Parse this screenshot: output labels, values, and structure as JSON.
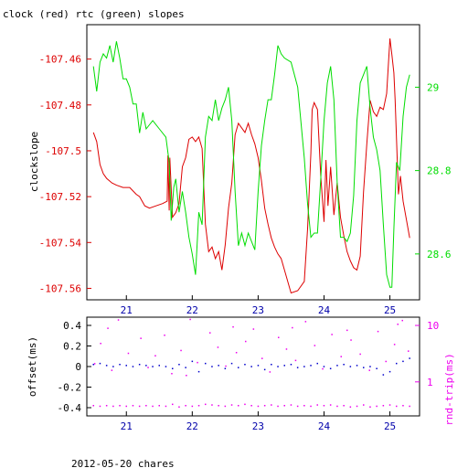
{
  "title": "clock (red) rtc (green) slopes",
  "footer": "2012-05-20 chares",
  "colors": {
    "clock": "#dd0000",
    "rtc": "#00dd00",
    "offset": "#0000cc",
    "rtt": "#ee00ee",
    "axes": "#000000"
  },
  "chart_data": [
    {
      "type": "line",
      "ylabel": "clockslope",
      "xlim": [
        20.4,
        25.45
      ],
      "ylim": [
        -107.565,
        -107.445
      ],
      "ylim_right": [
        28.49,
        29.15
      ],
      "x_ticks": [
        21,
        22,
        23,
        24,
        25
      ],
      "x_tick_labels": [
        "21",
        "22",
        "23",
        "24",
        "25"
      ],
      "y_ticks": [
        -107.46,
        -107.48,
        -107.5,
        -107.52,
        -107.54,
        -107.56
      ],
      "y_tick_labels": [
        "-107.46",
        "-107.48",
        "-107.5",
        "-107.52",
        "-107.54",
        "-107.56"
      ],
      "y_right_ticks": [
        29,
        28.8,
        28.6
      ],
      "y_right_tick_labels": [
        "29",
        "28.8",
        "28.6"
      ],
      "series": [
        {
          "color_key": "clock",
          "axis": "left",
          "x": [
            20.5,
            20.55,
            20.6,
            20.65,
            20.7,
            20.78,
            20.85,
            20.95,
            21.05,
            21.15,
            21.2,
            21.28,
            21.35,
            21.45,
            21.55,
            21.62,
            21.63,
            21.65,
            21.66,
            21.7,
            21.75,
            21.8,
            21.85,
            21.9,
            21.95,
            22.0,
            22.05,
            22.1,
            22.15,
            22.2,
            22.25,
            22.3,
            22.35,
            22.4,
            22.45,
            22.5,
            22.55,
            22.6,
            22.65,
            22.7,
            22.75,
            22.8,
            22.85,
            22.9,
            22.95,
            23.0,
            23.05,
            23.1,
            23.15,
            23.2,
            23.25,
            23.3,
            23.35,
            23.4,
            23.5,
            23.6,
            23.7,
            23.75,
            23.8,
            23.82,
            23.85,
            23.9,
            23.95,
            24.0,
            24.03,
            24.06,
            24.1,
            24.15,
            24.2,
            24.25,
            24.3,
            24.35,
            24.4,
            24.45,
            24.5,
            24.55,
            24.6,
            24.65,
            24.7,
            24.75,
            24.8,
            24.85,
            24.9,
            24.95,
            25.0,
            25.03,
            25.06,
            25.08,
            25.1,
            25.13,
            25.16,
            25.2,
            25.25,
            25.3
          ],
          "y": [
            -107.492,
            -107.496,
            -107.506,
            -107.51,
            -107.512,
            -107.514,
            -107.515,
            -107.516,
            -107.516,
            -107.519,
            -107.52,
            -107.524,
            -107.525,
            -107.524,
            -107.523,
            -107.522,
            -107.502,
            -107.526,
            -107.503,
            -107.529,
            -107.527,
            -107.523,
            -107.507,
            -107.503,
            -107.495,
            -107.494,
            -107.496,
            -107.494,
            -107.499,
            -107.532,
            -107.544,
            -107.542,
            -107.547,
            -107.544,
            -107.552,
            -107.541,
            -107.525,
            -107.514,
            -107.493,
            -107.488,
            -107.49,
            -107.492,
            -107.488,
            -107.493,
            -107.497,
            -107.503,
            -107.513,
            -107.525,
            -107.532,
            -107.538,
            -107.542,
            -107.545,
            -107.547,
            -107.552,
            -107.562,
            -107.561,
            -107.557,
            -107.534,
            -107.501,
            -107.482,
            -107.479,
            -107.482,
            -107.511,
            -107.531,
            -107.504,
            -107.524,
            -107.507,
            -107.528,
            -107.514,
            -107.529,
            -107.537,
            -107.544,
            -107.548,
            -107.551,
            -107.552,
            -107.546,
            -107.518,
            -107.497,
            -107.478,
            -107.483,
            -107.485,
            -107.481,
            -107.482,
            -107.475,
            -107.451,
            -107.458,
            -107.466,
            -107.478,
            -107.495,
            -107.519,
            -107.511,
            -107.522,
            -107.53,
            -107.538
          ]
        },
        {
          "color_key": "rtc",
          "axis": "right",
          "x": [
            20.5,
            20.55,
            20.6,
            20.65,
            20.7,
            20.75,
            20.8,
            20.85,
            20.9,
            20.95,
            21.0,
            21.05,
            21.1,
            21.15,
            21.2,
            21.25,
            21.3,
            21.35,
            21.4,
            21.5,
            21.6,
            21.65,
            21.68,
            21.72,
            21.75,
            21.8,
            21.85,
            21.9,
            21.95,
            22.0,
            22.05,
            22.1,
            22.15,
            22.2,
            22.25,
            22.3,
            22.35,
            22.4,
            22.45,
            22.5,
            22.55,
            22.6,
            22.65,
            22.7,
            22.75,
            22.8,
            22.85,
            22.9,
            22.95,
            23.0,
            23.05,
            23.1,
            23.15,
            23.2,
            23.25,
            23.3,
            23.35,
            23.4,
            23.5,
            23.6,
            23.7,
            23.75,
            23.8,
            23.85,
            23.9,
            23.95,
            24.0,
            24.05,
            24.1,
            24.15,
            24.2,
            24.25,
            24.3,
            24.35,
            24.4,
            24.45,
            24.5,
            24.55,
            24.6,
            24.65,
            24.7,
            24.75,
            24.8,
            24.85,
            24.9,
            24.95,
            25.0,
            25.03,
            25.06,
            25.1,
            25.15,
            25.2,
            25.25,
            25.3
          ],
          "y": [
            29.05,
            28.99,
            29.06,
            29.08,
            29.07,
            29.1,
            29.06,
            29.11,
            29.07,
            29.02,
            29.02,
            29.0,
            28.96,
            28.96,
            28.89,
            28.94,
            28.9,
            28.91,
            28.92,
            28.9,
            28.88,
            28.82,
            28.68,
            28.76,
            28.78,
            28.7,
            28.75,
            28.7,
            28.64,
            28.6,
            28.55,
            28.7,
            28.67,
            28.88,
            28.93,
            28.92,
            28.97,
            28.92,
            28.95,
            28.97,
            29.0,
            28.92,
            28.75,
            28.62,
            28.65,
            28.62,
            28.65,
            28.63,
            28.61,
            28.75,
            28.86,
            28.92,
            28.97,
            28.97,
            29.03,
            29.1,
            29.08,
            29.07,
            29.06,
            29.0,
            28.83,
            28.72,
            28.64,
            28.65,
            28.65,
            28.78,
            28.92,
            29.01,
            29.05,
            28.97,
            28.77,
            28.64,
            28.64,
            28.63,
            28.65,
            28.74,
            28.92,
            29.01,
            29.03,
            29.05,
            28.95,
            28.88,
            28.85,
            28.8,
            28.67,
            28.55,
            28.52,
            28.52,
            28.66,
            28.82,
            28.8,
            28.93,
            29.0,
            29.03
          ]
        }
      ]
    },
    {
      "type": "scatter",
      "ylabel": "offset(ms)",
      "ylabel_right": "rnd-trip(ms)",
      "xlim": [
        20.4,
        25.45
      ],
      "ylim": [
        -0.48,
        0.48
      ],
      "ylim_right_log": [
        0.25,
        14
      ],
      "x_ticks": [
        21,
        22,
        23,
        24,
        25
      ],
      "x_tick_labels": [
        "21",
        "22",
        "23",
        "24",
        "25"
      ],
      "y_ticks": [
        0.4,
        0.2,
        0,
        -0.2,
        -0.4
      ],
      "y_tick_labels": [
        "0.4",
        "0.2",
        "0",
        "-0.2",
        "-0.4"
      ],
      "y_right_ticks": [
        10,
        1
      ],
      "y_right_tick_labels": [
        "10",
        "1"
      ],
      "series": [
        {
          "color_key": "offset",
          "axis": "left",
          "x": [
            20.5,
            20.6,
            20.7,
            20.8,
            20.9,
            21.0,
            21.1,
            21.2,
            21.3,
            21.4,
            21.5,
            21.6,
            21.7,
            21.8,
            21.9,
            22.0,
            22.1,
            22.2,
            22.3,
            22.4,
            22.5,
            22.6,
            22.7,
            22.8,
            22.9,
            23.0,
            23.1,
            23.2,
            23.3,
            23.4,
            23.5,
            23.6,
            23.7,
            23.8,
            23.9,
            24.0,
            24.1,
            24.2,
            24.3,
            24.4,
            24.5,
            24.6,
            24.7,
            24.8,
            24.9,
            25.0,
            25.1,
            25.2,
            25.3
          ],
          "y": [
            0.02,
            0.03,
            0.01,
            0.0,
            0.02,
            0.01,
            0.0,
            0.02,
            0.01,
            0.0,
            0.01,
            0.0,
            -0.02,
            0.02,
            -0.01,
            0.05,
            -0.05,
            0.03,
            0.0,
            0.01,
            -0.02,
            0.03,
            -0.01,
            0.02,
            0.0,
            0.01,
            -0.03,
            0.02,
            0.0,
            0.01,
            0.02,
            -0.01,
            0.0,
            0.01,
            0.03,
            0.0,
            -0.02,
            0.01,
            0.02,
            0.0,
            0.01,
            -0.01,
            0.0,
            -0.02,
            -0.08,
            -0.05,
            0.03,
            0.05,
            0.08
          ]
        },
        {
          "color_key": "rtt",
          "axis": "right",
          "x": [
            20.5,
            20.6,
            20.7,
            20.8,
            20.9,
            21.0,
            21.1,
            21.2,
            21.3,
            21.4,
            21.5,
            21.6,
            21.7,
            21.8,
            21.9,
            22.0,
            22.1,
            22.2,
            22.3,
            22.4,
            22.5,
            22.6,
            22.7,
            22.8,
            22.9,
            23.0,
            23.1,
            23.2,
            23.3,
            23.4,
            23.5,
            23.6,
            23.7,
            23.8,
            23.9,
            24.0,
            24.1,
            24.2,
            24.3,
            24.4,
            24.5,
            24.6,
            24.7,
            24.8,
            24.9,
            25.0,
            25.1,
            25.2,
            25.3
          ],
          "y": [
            0.38,
            0.37,
            0.38,
            0.37,
            0.38,
            0.37,
            0.38,
            0.37,
            0.38,
            0.37,
            0.38,
            0.37,
            0.4,
            0.36,
            0.38,
            0.37,
            0.38,
            0.4,
            0.39,
            0.38,
            0.37,
            0.39,
            0.38,
            0.4,
            0.38,
            0.37,
            0.38,
            0.39,
            0.37,
            0.38,
            0.39,
            0.37,
            0.38,
            0.37,
            0.39,
            0.38,
            0.39,
            0.37,
            0.38,
            0.36,
            0.37,
            0.39,
            0.36,
            0.37,
            0.38,
            0.39,
            0.37,
            0.38,
            0.37
          ]
        },
        {
          "color_key": "rtt",
          "axis": "right",
          "x": [
            20.52,
            20.61,
            20.78,
            20.88,
            21.03,
            21.22,
            21.33,
            21.44,
            21.58,
            21.69,
            21.83,
            21.97,
            22.08,
            22.27,
            22.39,
            22.51,
            22.67,
            22.81,
            22.93,
            23.06,
            23.18,
            23.31,
            23.43,
            23.57,
            23.72,
            23.86,
            23.98,
            24.12,
            24.26,
            24.41,
            24.55,
            24.69,
            24.82,
            24.94,
            25.07,
            25.19,
            25.28,
            20.72,
            21.91,
            22.62,
            23.52,
            24.35,
            25.12
          ],
          "y": [
            2.1,
            4.8,
            1.6,
            12.5,
            3.2,
            5.9,
            1.8,
            2.9,
            6.7,
            1.4,
            3.6,
            12.8,
            2.2,
            7.4,
            4.1,
            1.9,
            3.3,
            5.2,
            8.6,
            2.6,
            1.5,
            6.1,
            3.8,
            2.4,
            11.7,
            4.4,
            1.7,
            6.9,
            2.8,
            5.5,
            3.1,
            1.6,
            7.8,
            2.3,
            4.6,
            12.2,
            3.5,
            8.9,
            1.3,
            9.4,
            9.1,
            8.2,
            10.5
          ]
        }
      ]
    }
  ]
}
